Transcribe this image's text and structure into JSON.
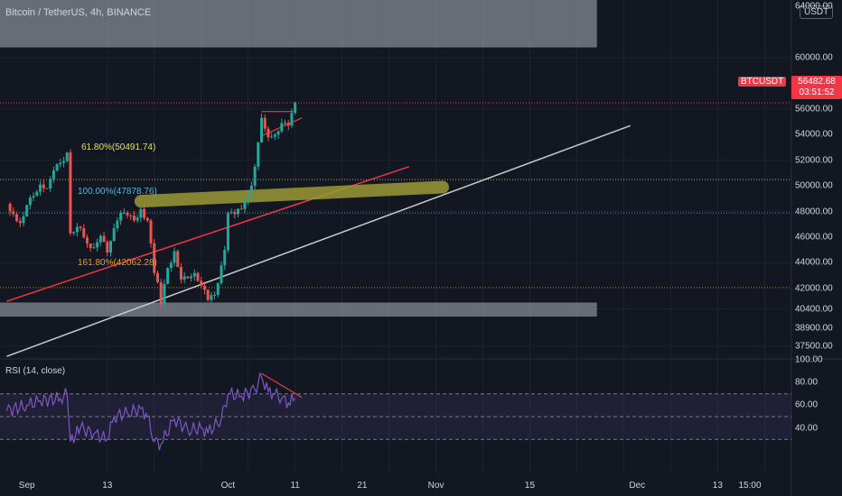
{
  "header": {
    "symbol_title": "Bitcoin / TetherUS, 4h, BINANCE",
    "currency": "USDT"
  },
  "price_scale": {
    "ticks": [
      "64000.00",
      "60000.00",
      "56000.00",
      "54000.00",
      "52000.00",
      "50000.00",
      "48000.00",
      "46000.00",
      "44000.00",
      "42000.00",
      "40400.00",
      "38900.00",
      "37500.00"
    ]
  },
  "last_price": {
    "ticker": "BTCUSDT",
    "price": "56482.68",
    "countdown": "03:51:52"
  },
  "fib_levels": [
    {
      "label": "61.80%(50491.74)",
      "color": "#e0e060"
    },
    {
      "label": "100.00%(47878.76)",
      "color": "#59b7d0"
    },
    {
      "label": "161.80%(42062.28)",
      "color": "#e39a2f"
    }
  ],
  "rsi": {
    "title": "RSI (14, close)",
    "ticks": [
      "100.00",
      "80.00",
      "60.00",
      "40.00"
    ]
  },
  "time_axis": {
    "ticks": [
      "Sep",
      "13",
      "Oct",
      "11",
      "21",
      "Nov",
      "15",
      "Dec",
      "13",
      "15:00"
    ]
  },
  "colors": {
    "background": "#131722",
    "up": "#26a69a",
    "down": "#ef5350",
    "rsi_line": "#7e57c2",
    "price_line": "#f23645",
    "trendline": "#c9c9c9",
    "zone": "#aeb3bd",
    "highlight": "#9b9a35"
  },
  "chart_data": {
    "type": "candlestick",
    "title": "Bitcoin / TetherUS, 4h, BINANCE",
    "x_range": [
      "2021-08-28",
      "2021-12-24"
    ],
    "y_range": [
      36500,
      64500
    ],
    "close_path": [
      [
        "2021-08-29",
        48600
      ],
      [
        "2021-08-30",
        47800
      ],
      [
        "2021-08-31",
        47100
      ],
      [
        "2021-09-01",
        48500
      ],
      [
        "2021-09-02",
        49200
      ],
      [
        "2021-09-03",
        50100
      ],
      [
        "2021-09-04",
        49800
      ],
      [
        "2021-09-05",
        51200
      ],
      [
        "2021-09-06",
        51800
      ],
      [
        "2021-09-07",
        52600
      ],
      [
        "2021-09-07T12",
        46300
      ],
      [
        "2021-09-08",
        46400
      ],
      [
        "2021-09-09",
        46700
      ],
      [
        "2021-09-10",
        45500
      ],
      [
        "2021-09-11",
        45200
      ],
      [
        "2021-09-12",
        46100
      ],
      [
        "2021-09-13",
        44800
      ],
      [
        "2021-09-14",
        46700
      ],
      [
        "2021-09-15",
        47900
      ],
      [
        "2021-09-16",
        47700
      ],
      [
        "2021-09-17",
        47300
      ],
      [
        "2021-09-18",
        48200
      ],
      [
        "2021-09-19",
        47300
      ],
      [
        "2021-09-20",
        43200
      ],
      [
        "2021-09-21",
        40800
      ],
      [
        "2021-09-22",
        43600
      ],
      [
        "2021-09-23",
        44900
      ],
      [
        "2021-09-24",
        42700
      ],
      [
        "2021-09-25",
        42800
      ],
      [
        "2021-09-26",
        43200
      ],
      [
        "2021-09-27",
        42200
      ],
      [
        "2021-09-28",
        41100
      ],
      [
        "2021-09-29",
        41500
      ],
      [
        "2021-09-30",
        43800
      ],
      [
        "2021-10-01",
        47900
      ],
      [
        "2021-10-02",
        47800
      ],
      [
        "2021-10-03",
        48200
      ],
      [
        "2021-10-04",
        49200
      ],
      [
        "2021-10-05",
        51500
      ],
      [
        "2021-10-06",
        55300
      ],
      [
        "2021-10-07",
        53800
      ],
      [
        "2021-10-08",
        54000
      ],
      [
        "2021-10-09",
        54900
      ],
      [
        "2021-10-10",
        54700
      ],
      [
        "2021-10-11",
        56482.68
      ]
    ],
    "price_levels": [
      56482.68,
      50491.74,
      47878.76,
      42062.28
    ],
    "zones": [
      [
        60800,
        64500
      ],
      [
        39800,
        40900
      ]
    ],
    "rsi": {
      "name": "RSI (14, close)",
      "y_range": [
        0,
        100
      ],
      "bands": [
        30,
        50,
        70
      ],
      "values": [
        [
          "2021-08-29",
          55
        ],
        [
          "2021-09-01",
          60
        ],
        [
          "2021-09-03",
          64
        ],
        [
          "2021-09-06",
          66
        ],
        [
          "2021-09-07",
          70
        ],
        [
          "2021-09-07T12",
          28
        ],
        [
          "2021-09-09",
          40
        ],
        [
          "2021-09-11",
          35
        ],
        [
          "2021-09-13",
          30
        ],
        [
          "2021-09-14",
          50
        ],
        [
          "2021-09-16",
          53
        ],
        [
          "2021-09-18",
          57
        ],
        [
          "2021-09-19",
          50
        ],
        [
          "2021-09-20",
          28
        ],
        [
          "2021-09-21",
          26
        ],
        [
          "2021-09-23",
          48
        ],
        [
          "2021-09-25",
          38
        ],
        [
          "2021-09-27",
          40
        ],
        [
          "2021-09-28",
          36
        ],
        [
          "2021-09-30",
          48
        ],
        [
          "2021-10-01",
          70
        ],
        [
          "2021-10-03",
          68
        ],
        [
          "2021-10-05",
          74
        ],
        [
          "2021-10-06",
          85
        ],
        [
          "2021-10-07",
          72
        ],
        [
          "2021-10-08",
          70
        ],
        [
          "2021-10-09",
          66
        ],
        [
          "2021-10-10",
          62
        ],
        [
          "2021-10-11",
          66
        ]
      ]
    }
  }
}
